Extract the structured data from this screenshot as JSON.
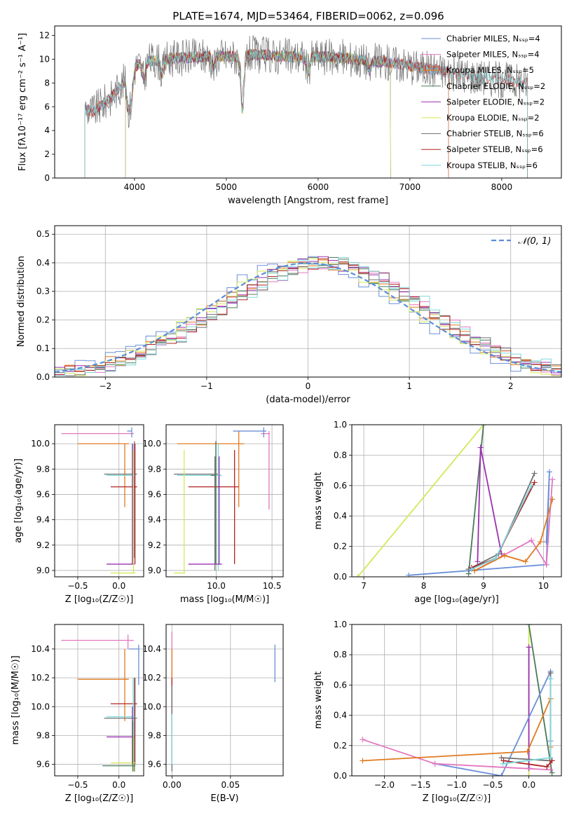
{
  "figure": {
    "title": "PLATE=1674, MJD=53464, FIBERID=0062, z=0.096"
  },
  "colors": {
    "chabrier_miles": "#6b8fd8",
    "salpeter_miles": "#e377c2",
    "kroupa_miles": "#e07a1f",
    "chabrier_elodie": "#4a7a5a",
    "salpeter_elodie": "#9b30b0",
    "kroupa_elodie": "#d4e85a",
    "chabrier_stelib": "#707070",
    "salpeter_stelib": "#b22222",
    "kroupa_stelib": "#7fd8dc"
  },
  "chart_data": [
    {
      "id": "spectrum",
      "type": "line",
      "title": "PLATE=1674, MJD=53464, FIBERID=0062, z=0.096",
      "xlabel": "wavelength [Angstrom, rest frame]",
      "ylabel": "Flux [fλ10⁻¹⁷ erg cm⁻² s⁻¹ A⁻¹]",
      "xlim": [
        3130,
        8650
      ],
      "ylim": [
        0,
        12.8
      ],
      "xticks": [
        4000,
        5000,
        6000,
        7000,
        8000
      ],
      "yticks": [
        0,
        2,
        4,
        6,
        8,
        10,
        12
      ],
      "grid": false,
      "legend_position": "top-right",
      "legend": [
        "Chabrier MILES, Nₛₛₚ=4",
        "Salpeter MILES, Nₛₛₚ=4",
        "Kroupa MILES, Nₛₛₚ=5",
        "Chabrier ELODIE, Nₛₛₚ=2",
        "Salpeter ELODIE, Nₛₛₚ=2",
        "Kroupa ELODIE, Nₛₛₚ=2",
        "Chabrier STELIB, Nₛₛₚ=6",
        "Salpeter STELIB, Nₛₛₚ=6",
        "Kroupa STELIB, Nₛₛₚ=6"
      ],
      "continuum": {
        "x": [
          3450,
          3550,
          3650,
          3750,
          3850,
          3950,
          4000,
          4100,
          4300,
          4500,
          4700,
          4900,
          5100,
          5300,
          5500,
          5700,
          5900,
          6100,
          6300,
          6500,
          6700,
          6900,
          7100,
          7300,
          7500,
          7700,
          7900,
          8100,
          8300
        ],
        "y": [
          5.8,
          5.6,
          6.2,
          6.8,
          7.8,
          8.8,
          9.4,
          9.8,
          10.0,
          10.1,
          10.2,
          10.3,
          10.2,
          10.4,
          10.3,
          10.2,
          10.2,
          10.2,
          10.1,
          9.9,
          9.8,
          9.6,
          9.3,
          9.1,
          8.8,
          8.6,
          8.4,
          8.2,
          8.0
        ]
      },
      "series_x_ranges": [
        {
          "name": "Chabrier MILES",
          "x": [
            3460,
            7420
          ]
        },
        {
          "name": "Salpeter MILES",
          "x": [
            3460,
            7420
          ]
        },
        {
          "name": "Kroupa MILES",
          "x": [
            3460,
            7420
          ]
        },
        {
          "name": "Chabrier ELODIE",
          "x": [
            3900,
            6790
          ]
        },
        {
          "name": "Salpeter ELODIE",
          "x": [
            3900,
            6790
          ]
        },
        {
          "name": "Kroupa ELODIE",
          "x": [
            3900,
            6790
          ]
        },
        {
          "name": "Chabrier STELIB",
          "x": [
            3460,
            8280
          ]
        },
        {
          "name": "Salpeter STELIB",
          "x": [
            3460,
            8280
          ]
        },
        {
          "name": "Kroupa STELIB",
          "x": [
            3460,
            8280
          ]
        }
      ]
    },
    {
      "id": "residuals",
      "type": "histogram",
      "xlabel": "(data-model)/error",
      "ylabel": "Normed distribution",
      "xlim": [
        -2.5,
        2.5
      ],
      "ylim": [
        0,
        0.53
      ],
      "xticks": [
        -2,
        -1,
        0,
        1,
        2
      ],
      "yticks": [
        0.0,
        0.1,
        0.2,
        0.3,
        0.4,
        0.5
      ],
      "grid": true,
      "legend_position": "top-right",
      "legend": [
        "𝒩(0, 1)"
      ],
      "bin_width": 0.1,
      "reference_curve": "normal(0,1)",
      "series": [
        {
          "name": "Chabrier MILES",
          "shift": -0.05,
          "seed": 1
        },
        {
          "name": "Salpeter MILES",
          "shift": 0.2,
          "seed": 2
        },
        {
          "name": "Kroupa MILES",
          "shift": 0.1,
          "seed": 3
        },
        {
          "name": "Chabrier ELODIE",
          "shift": 0.15,
          "seed": 4
        },
        {
          "name": "Salpeter ELODIE",
          "shift": 0.12,
          "seed": 5
        },
        {
          "name": "Kroupa ELODIE",
          "shift": 0.05,
          "seed": 6
        },
        {
          "name": "Chabrier STELIB",
          "shift": 0.18,
          "seed": 7
        },
        {
          "name": "Salpeter STELIB",
          "shift": 0.14,
          "seed": 8
        },
        {
          "name": "Kroupa STELIB",
          "shift": 0.22,
          "seed": 9
        }
      ]
    },
    {
      "id": "age_vs_Z",
      "type": "errorbar",
      "xlabel": "Z [log₁₀(Z/Z☉)]",
      "ylabel": "age  [log₁₀(age/yr)]",
      "xlim": [
        -0.78,
        0.3
      ],
      "ylim": [
        8.95,
        10.15
      ],
      "xticks": [
        -0.5,
        0.0
      ],
      "yticks": [
        9.0,
        9.2,
        9.4,
        9.6,
        9.8,
        10.0
      ],
      "grid": true,
      "points": [
        {
          "name": "Salpeter MILES",
          "x": [
            -0.7,
            0.18
          ],
          "y": 10.08,
          "ey": [
            10.08,
            10.08
          ]
        },
        {
          "name": "Kroupa MILES",
          "x": [
            -0.5,
            0.12
          ],
          "y": 10.0,
          "ey": [
            9.5,
            10.0
          ]
        },
        {
          "name": "Chabrier STELIB",
          "x": [
            -0.18,
            0.22
          ],
          "y": 9.76,
          "ey": [
            9.1,
            10.02
          ]
        },
        {
          "name": "Kroupa STELIB",
          "x": [
            -0.15,
            0.2
          ],
          "y": 9.75,
          "ey": [
            9.05,
            10.0
          ]
        },
        {
          "name": "Salpeter STELIB",
          "x": [
            -0.1,
            0.22
          ],
          "y": 9.66,
          "ey": [
            9.05,
            10.0
          ]
        },
        {
          "name": "Salpeter ELODIE",
          "x": [
            -0.15,
            0.19
          ],
          "y": 9.05,
          "ey": [
            9.05,
            10.0
          ]
        },
        {
          "name": "Kroupa ELODIE",
          "x": [
            -0.1,
            0.2
          ],
          "y": 8.98,
          "ey": [
            8.98,
            9.95
          ]
        },
        {
          "name": "Chabrier MILES",
          "x": [
            0.1,
            0.16
          ],
          "y": 10.1,
          "ey": [
            10.05,
            10.13
          ]
        }
      ]
    },
    {
      "id": "age_vs_mass",
      "type": "errorbar",
      "xlabel": "mass [log₁₀(M/M☉)]",
      "ylabel": "",
      "xlim": [
        9.55,
        10.6
      ],
      "ylim": [
        8.95,
        10.15
      ],
      "xticks": [
        10.0,
        10.5
      ],
      "yticks": [
        9.0,
        9.2,
        9.4,
        9.6,
        9.8,
        10.0
      ],
      "grid": true,
      "points": [
        {
          "name": "Salpeter MILES",
          "x": [
            10.4,
            10.48
          ],
          "y": 10.08,
          "ey": [
            9.48,
            10.1
          ]
        },
        {
          "name": "Kroupa MILES",
          "x": [
            9.65,
            10.25
          ],
          "y": 10.0,
          "ey": [
            9.5,
            10.1
          ]
        },
        {
          "name": "Chabrier MILES",
          "x": [
            10.15,
            10.45
          ],
          "y": 10.1,
          "ey": [
            10.05,
            10.13
          ]
        },
        {
          "name": "Chabrier STELIB",
          "x": [
            9.62,
            10.02
          ],
          "y": 9.76,
          "ey": [
            9.0,
            9.9
          ]
        },
        {
          "name": "Kroupa STELIB",
          "x": [
            9.65,
            10.05
          ],
          "y": 9.75,
          "ey": [
            9.0,
            10.0
          ]
        },
        {
          "name": "Salpeter STELIB",
          "x": [
            9.75,
            10.2
          ],
          "y": 9.66,
          "ey": [
            9.05,
            9.95
          ]
        },
        {
          "name": "Salpeter ELODIE",
          "x": [
            9.75,
            10.05
          ],
          "y": 9.05,
          "ey": [
            9.05,
            9.9
          ]
        },
        {
          "name": "Kroupa ELODIE",
          "x": [
            9.62,
            9.72
          ],
          "y": 8.98,
          "ey": [
            8.98,
            9.95
          ]
        },
        {
          "name": "Chabrier ELODIE",
          "x": [
            9.95,
            10.0
          ],
          "y": 9.75,
          "ey": [
            9.05,
            10.02
          ]
        }
      ]
    },
    {
      "id": "weight_vs_age",
      "type": "line",
      "xlabel": "age  [log₁₀(age/yr)]",
      "ylabel": "mass weight",
      "xlim": [
        6.8,
        10.3
      ],
      "ylim": [
        0,
        1.0
      ],
      "xticks": [
        7,
        8,
        9,
        10
      ],
      "yticks": [
        0.0,
        0.2,
        0.4,
        0.6,
        0.8,
        1.0
      ],
      "grid": true,
      "series": [
        {
          "name": "Kroupa ELODIE",
          "x": [
            6.9,
            9.0
          ],
          "y": [
            0.0,
            1.0
          ]
        },
        {
          "name": "Chabrier ELODIE",
          "x": [
            8.75,
            9.0
          ],
          "y": [
            0.02,
            1.0
          ]
        },
        {
          "name": "Salpeter ELODIE",
          "x": [
            8.9,
            8.95,
            9.3
          ],
          "y": [
            0.1,
            0.85,
            0.15
          ]
        },
        {
          "name": "Chabrier MILES",
          "x": [
            7.75,
            10.05,
            10.1,
            10.05
          ],
          "y": [
            0.01,
            0.08,
            0.69,
            0.23
          ]
        },
        {
          "name": "Salpeter MILES",
          "x": [
            8.85,
            9.8,
            10.05,
            10.15
          ],
          "y": [
            0.04,
            0.24,
            0.08,
            0.64
          ]
        },
        {
          "name": "Kroupa MILES",
          "x": [
            8.85,
            9.35,
            9.7,
            9.95,
            10.15
          ],
          "y": [
            0.04,
            0.14,
            0.1,
            0.23,
            0.51
          ]
        },
        {
          "name": "Chabrier STELIB",
          "x": [
            8.75,
            9.25,
            9.85
          ],
          "y": [
            0.05,
            0.15,
            0.68
          ]
        },
        {
          "name": "Salpeter STELIB",
          "x": [
            8.8,
            9.2,
            9.85
          ],
          "y": [
            0.06,
            0.12,
            0.62
          ]
        },
        {
          "name": "Kroupa STELIB",
          "x": [
            8.8,
            9.2,
            9.8
          ],
          "y": [
            0.05,
            0.12,
            0.6
          ]
        }
      ]
    },
    {
      "id": "mass_vs_Z",
      "type": "errorbar",
      "xlabel": "Z [log₁₀(Z/Z☉)]",
      "ylabel": "mass [log₁₀(M/M☉)]",
      "xlim": [
        -0.78,
        0.3
      ],
      "ylim": [
        9.52,
        10.57
      ],
      "xticks": [
        -0.5,
        0.0
      ],
      "yticks": [
        9.6,
        9.8,
        10.0,
        10.2,
        10.4
      ],
      "grid": true,
      "points": [
        {
          "name": "Salpeter MILES",
          "x": [
            -0.7,
            0.18
          ],
          "y": 10.46,
          "ey": [
            10.4,
            10.5
          ]
        },
        {
          "name": "Chabrier MILES",
          "x": [
            0.12,
            0.25
          ],
          "y": 10.4,
          "ey": [
            10.15,
            10.43
          ]
        },
        {
          "name": "Kroupa MILES",
          "x": [
            -0.5,
            0.12
          ],
          "y": 10.19,
          "ey": [
            9.9,
            10.4
          ]
        },
        {
          "name": "Salpeter STELIB",
          "x": [
            -0.1,
            0.22
          ],
          "y": 10.02,
          "ey": [
            9.6,
            10.2
          ]
        },
        {
          "name": "Kroupa STELIB",
          "x": [
            -0.15,
            0.2
          ],
          "y": 9.93,
          "ey": [
            9.58,
            10.2
          ]
        },
        {
          "name": "Chabrier STELIB",
          "x": [
            -0.18,
            0.22
          ],
          "y": 9.92,
          "ey": [
            9.55,
            10.2
          ]
        },
        {
          "name": "Salpeter ELODIE",
          "x": [
            -0.15,
            0.19
          ],
          "y": 9.79,
          "ey": [
            9.6,
            10.0
          ]
        },
        {
          "name": "Kroupa ELODIE",
          "x": [
            -0.1,
            0.2
          ],
          "y": 9.61,
          "ey": [
            9.55,
            9.8
          ]
        },
        {
          "name": "Chabrier ELODIE",
          "x": [
            -0.2,
            0.2
          ],
          "y": 9.59,
          "ey": [
            9.55,
            9.9
          ]
        }
      ]
    },
    {
      "id": "mass_vs_ebv",
      "type": "errorbar",
      "xlabel": "E(B-V)",
      "ylabel": "",
      "xlim": [
        -0.005,
        0.095
      ],
      "ylim": [
        9.52,
        10.57
      ],
      "xticks": [
        0.0,
        0.05
      ],
      "yticks": [
        9.6,
        9.8,
        10.0,
        10.2,
        10.4
      ],
      "grid": true,
      "points": [
        {
          "name": "Salpeter MILES",
          "x": [
            0.0,
            0.0
          ],
          "y": 10.46,
          "ey": [
            10.15,
            10.52
          ]
        },
        {
          "name": "Kroupa MILES",
          "x": [
            0.0,
            0.0
          ],
          "y": 10.19,
          "ey": [
            9.9,
            10.4
          ]
        },
        {
          "name": "Salpeter STELIB",
          "x": [
            0.0,
            0.0
          ],
          "y": 10.02,
          "ey": [
            9.6,
            10.2
          ]
        },
        {
          "name": "Chabrier STELIB",
          "x": [
            0.0,
            0.0
          ],
          "y": 9.92,
          "ey": [
            9.55,
            10.15
          ]
        },
        {
          "name": "Kroupa STELIB",
          "x": [
            0.0,
            0.0
          ],
          "y": 9.93,
          "ey": [
            9.6,
            9.95
          ]
        },
        {
          "name": "Chabrier MILES",
          "x": [
            0.088,
            0.088
          ],
          "y": 10.3,
          "ey": [
            10.17,
            10.43
          ]
        }
      ]
    },
    {
      "id": "weight_vs_Z",
      "type": "line",
      "xlabel": "Z [log₁₀(Z/Z☉)]",
      "ylabel": "mass weight",
      "xlim": [
        -2.45,
        0.45
      ],
      "ylim": [
        0,
        1.0
      ],
      "xticks": [
        -2.0,
        -1.5,
        -1.0,
        -0.5,
        0.0
      ],
      "yticks": [
        0.0,
        0.2,
        0.4,
        0.6,
        0.8,
        1.0
      ],
      "grid": true,
      "series": [
        {
          "name": "Kroupa ELODIE",
          "x": [
            0.0,
            0.0
          ],
          "y": [
            0.0,
            1.0
          ]
        },
        {
          "name": "Chabrier ELODIE",
          "x": [
            0.0,
            0.32
          ],
          "y": [
            1.0,
            0.02
          ]
        },
        {
          "name": "Salpeter ELODIE",
          "x": [
            0.0,
            0.0
          ],
          "y": [
            0.85,
            0.05
          ]
        },
        {
          "name": "Chabrier MILES",
          "x": [
            -1.3,
            -0.38,
            0.3,
            0.3
          ],
          "y": [
            0.08,
            0.0,
            0.69,
            0.23
          ]
        },
        {
          "name": "Salpeter MILES",
          "x": [
            -2.3,
            -1.3,
            0.3
          ],
          "y": [
            0.24,
            0.08,
            0.04
          ]
        },
        {
          "name": "Kroupa MILES",
          "x": [
            -2.3,
            -0.02,
            0.3,
            0.3
          ],
          "y": [
            0.1,
            0.16,
            0.51,
            0.19
          ]
        },
        {
          "name": "Chabrier STELIB",
          "x": [
            -0.38,
            0.3,
            0.3
          ],
          "y": [
            0.12,
            0.1,
            0.68
          ]
        },
        {
          "name": "Salpeter STELIB",
          "x": [
            -0.35,
            0.25,
            0.32
          ],
          "y": [
            0.1,
            0.06,
            0.1
          ]
        },
        {
          "name": "Kroupa STELIB",
          "x": [
            -0.36,
            0.3,
            0.3
          ],
          "y": [
            0.08,
            0.12,
            0.64
          ]
        }
      ]
    }
  ]
}
